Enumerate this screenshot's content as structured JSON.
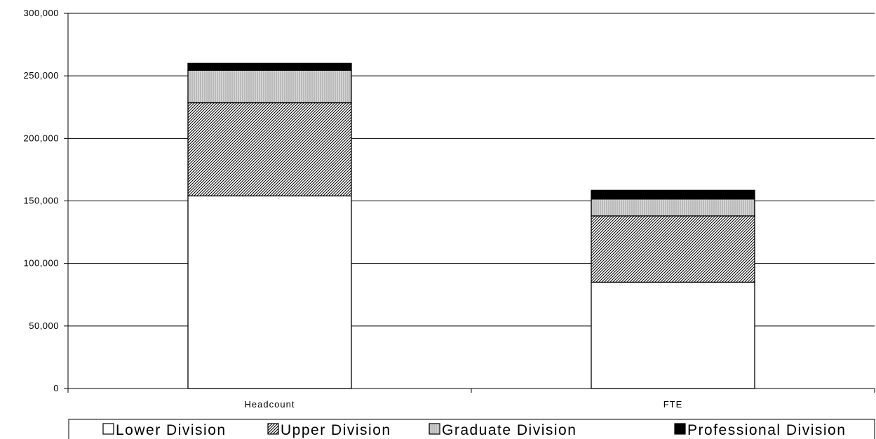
{
  "chart_data": {
    "type": "bar",
    "stacked": true,
    "categories": [
      "Headcount",
      "FTE"
    ],
    "series": [
      {
        "name": "Lower Division",
        "values": [
          154000,
          85000
        ],
        "pattern": "white"
      },
      {
        "name": "Upper Division",
        "values": [
          74500,
          53000
        ],
        "pattern": "dense-diagonal-hatch"
      },
      {
        "name": "Graduate Division",
        "values": [
          26000,
          13500
        ],
        "pattern": "light-gray-vertical"
      },
      {
        "name": "Professional Division",
        "values": [
          5500,
          7000
        ],
        "pattern": "black"
      }
    ],
    "title": "",
    "xlabel": "",
    "ylabel": "",
    "ylim": [
      0,
      300000
    ],
    "yticks": [
      0,
      50000,
      100000,
      150000,
      200000,
      250000,
      300000
    ],
    "ytick_labels": [
      "0",
      "50,000",
      "100,000",
      "150,000",
      "200,000",
      "250,000",
      "300,000"
    ],
    "grid": true,
    "legend_position": "bottom",
    "colors": {
      "background": "#ffffff",
      "axis": "#000000",
      "grid": "#000000"
    }
  }
}
